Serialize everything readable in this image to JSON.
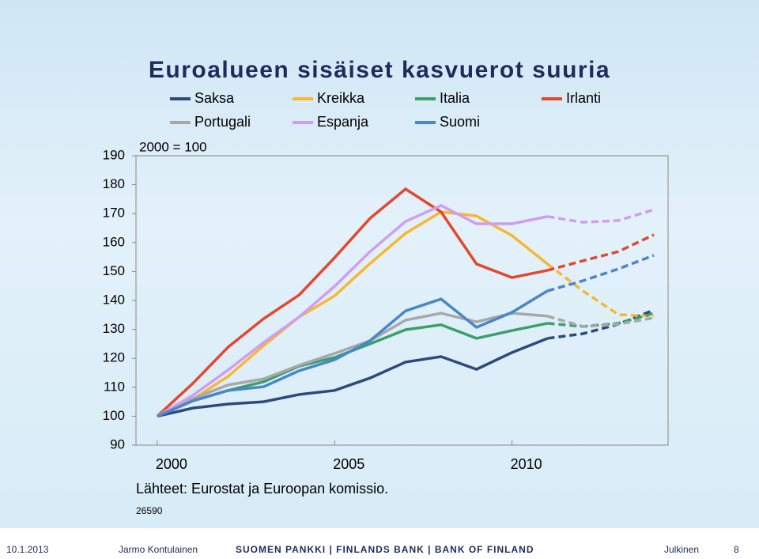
{
  "slide": {
    "title": "Euroalueen sisäiset kasvuerot suuria",
    "footer": {
      "date": "10.1.2013",
      "author": "Jarmo Kontulainen",
      "bank": "SUOMEN PANKKI | FINLANDS BANK | BANK OF FINLAND",
      "classification": "Julkinen",
      "page": "8"
    }
  },
  "chart_data": {
    "type": "line",
    "annotation": "2000 = 100",
    "source": "Lähteet: Eurostat ja Euroopan komissio.",
    "code": "26590",
    "x": [
      2000,
      2001,
      2002,
      2003,
      2004,
      2005,
      2006,
      2007,
      2008,
      2009,
      2010,
      2011,
      2012,
      2013,
      2014
    ],
    "dashed_from": 2011,
    "xlim": [
      1999.4,
      2014.4
    ],
    "xticks": [
      2000,
      2005,
      2010
    ],
    "ylim": [
      90,
      190
    ],
    "yticks": [
      90,
      100,
      110,
      120,
      130,
      140,
      150,
      160,
      170,
      180,
      190
    ],
    "grid": false,
    "series": [
      {
        "name": "Saksa",
        "color": "#2e4a7a",
        "values": [
          100,
          102.8,
          104.2,
          105,
          107.5,
          108.9,
          113.2,
          118.7,
          120.6,
          116.2,
          122,
          126.9,
          128.5,
          131.8,
          136.7
        ]
      },
      {
        "name": "Kreikka",
        "color": "#f7b733",
        "values": [
          100,
          105.8,
          113.8,
          124.4,
          134.3,
          141.6,
          152.8,
          163.2,
          170.6,
          169.2,
          162.4,
          152.6,
          143.3,
          135.1,
          134.6
        ]
      },
      {
        "name": "Italia",
        "color": "#3aa06c",
        "values": [
          100,
          105.3,
          108.9,
          111.9,
          117.3,
          120.3,
          125,
          129.9,
          131.6,
          126.9,
          129.6,
          132.1,
          131,
          132.1,
          135.6
        ]
      },
      {
        "name": "Irlanti",
        "color": "#e2482f",
        "values": [
          100,
          111.3,
          123.9,
          133.7,
          141.9,
          154.8,
          168.4,
          178.5,
          170.6,
          152.6,
          147.9,
          150.4,
          153.7,
          156.9,
          162.7
        ]
      },
      {
        "name": "Portugali",
        "color": "#a8a8a8",
        "values": [
          100,
          106.1,
          110.8,
          112.9,
          117.6,
          121.7,
          126.1,
          133.2,
          135.6,
          132.6,
          135.6,
          134.6,
          131,
          131.8,
          134
        ]
      },
      {
        "name": "Espanja",
        "color": "#d09ef0",
        "values": [
          100,
          107.2,
          116,
          125.5,
          134.3,
          144.9,
          156.9,
          167.3,
          172.8,
          166.5,
          166.5,
          169,
          167,
          167.6,
          171.4
        ]
      },
      {
        "name": "Suomi",
        "color": "#4a86c8",
        "values": [
          100,
          105.3,
          108.9,
          110.2,
          115.7,
          119.5,
          126.1,
          136.4,
          140.5,
          130.7,
          135.9,
          143.3,
          146.8,
          150.9,
          155.6
        ]
      }
    ]
  }
}
